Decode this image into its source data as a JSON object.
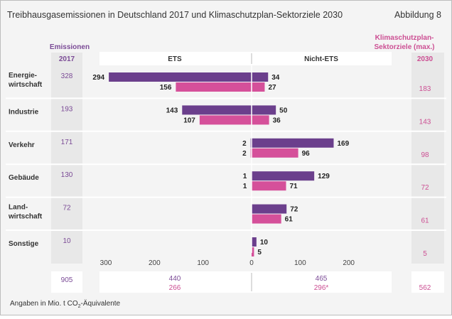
{
  "header": {
    "title": "Treibhausgasemissionen in Deutschland 2017 und Klimaschutzplan-Sektorziele 2030",
    "figure_label": "Abbildung 8"
  },
  "labels": {
    "emissions_heading": "Emissionen",
    "year_2017": "2017",
    "ets": "ETS",
    "non_ets": "Nicht-ETS",
    "targets_heading_line1": "Klimaschutzplan-",
    "targets_heading_line2": "Sektorziele (max.)",
    "year_2030": "2030"
  },
  "footnote": {
    "prefix": "Angaben in Mio. t CO",
    "subscript": "2",
    "suffix": "-Äquivalente"
  },
  "totals": {
    "emissions_2017": "905",
    "ets_2017": "440",
    "ets_2030": "266",
    "non_ets_2017": "465",
    "non_ets_2030": "296*",
    "target_2030": "562"
  },
  "colors": {
    "bar_2017": "#6b3f8c",
    "bar_2030": "#d5509a",
    "text_2017": "#7b4b96",
    "text_2030": "#cc4f93",
    "panel": "#e8e8e8",
    "frame_bg": "#f4f4f4"
  },
  "chart_data": {
    "type": "bar",
    "orientation": "horizontal-diverging",
    "categories": [
      "Energie-wirtschaft",
      "Industrie",
      "Verkehr",
      "Gebäude",
      "Land-wirtschaft",
      "Sonstige"
    ],
    "category_lines": [
      [
        "Energie-",
        "wirtschaft"
      ],
      [
        "Industrie"
      ],
      [
        "Verkehr"
      ],
      [
        "Gebäude"
      ],
      [
        "Land-",
        "wirtschaft"
      ],
      [
        "Sonstige"
      ]
    ],
    "emissions_2017": [
      328,
      193,
      171,
      130,
      72,
      10
    ],
    "targets_2030": [
      183,
      143,
      98,
      72,
      61,
      5
    ],
    "series": [
      {
        "values": [
          294,
          143,
          2,
          1,
          0,
          0
        ]
      },
      {
        "values": [
          156,
          107,
          2,
          1,
          0,
          0
        ]
      },
      {
        "values": [
          34,
          50,
          169,
          129,
          72,
          10
        ]
      },
      {
        "values": [
          27,
          36,
          96,
          71,
          61,
          5
        ]
      }
    ],
    "xticks": [
      "300",
      "200",
      "100",
      "0",
      "100",
      "200"
    ],
    "xlim_ets": [
      300,
      0
    ],
    "xlim_non_ets": [
      0,
      200
    ]
  }
}
